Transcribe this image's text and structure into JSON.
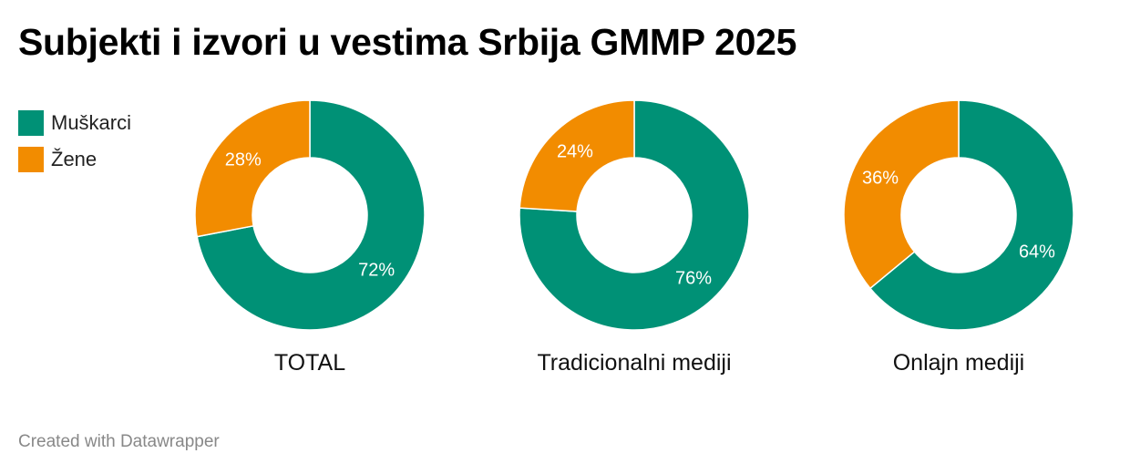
{
  "title": "Subjekti i izvori u vestima Srbija GMMP 2025",
  "legend": [
    {
      "label": "Muškarci",
      "color": "#009176"
    },
    {
      "label": "Žene",
      "color": "#f28c00"
    }
  ],
  "footer": "Created with Datawrapper",
  "chart_data": [
    {
      "type": "pie",
      "subtype": "donut",
      "label": "TOTAL",
      "slices": [
        {
          "name": "Muškarci",
          "value": 72,
          "label": "72%",
          "color": "#009176"
        },
        {
          "name": "Žene",
          "value": 28,
          "label": "28%",
          "color": "#f28c00"
        }
      ]
    },
    {
      "type": "pie",
      "subtype": "donut",
      "label": "Tradicionalni mediji",
      "slices": [
        {
          "name": "Muškarci",
          "value": 76,
          "label": "76%",
          "color": "#009176"
        },
        {
          "name": "Žene",
          "value": 24,
          "label": "24%",
          "color": "#f28c00"
        }
      ]
    },
    {
      "type": "pie",
      "subtype": "donut",
      "label": "Onlajn mediji",
      "slices": [
        {
          "name": "Muškarci",
          "value": 64,
          "label": "64%",
          "color": "#009176"
        },
        {
          "name": "Žene",
          "value": 36,
          "label": "36%",
          "color": "#f28c00"
        }
      ]
    }
  ]
}
